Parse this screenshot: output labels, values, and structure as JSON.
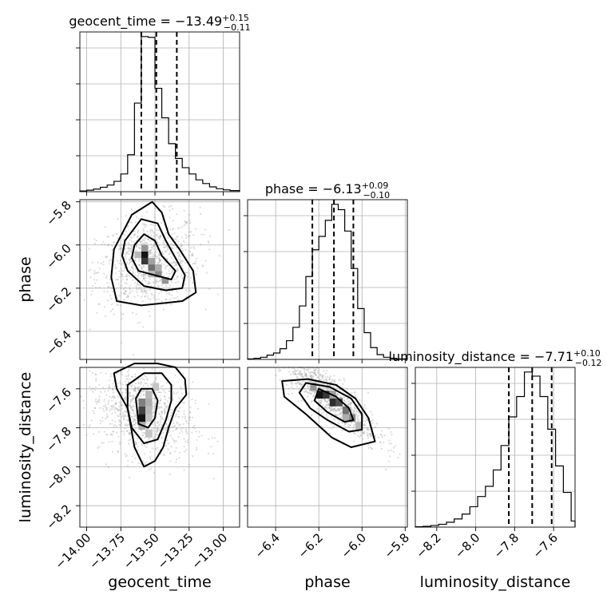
{
  "chart_data": {
    "type": "corner",
    "parameters": [
      "geocent_time",
      "phase",
      "luminosity_distance"
    ],
    "axis_labels": {
      "x": [
        "geocent_time",
        "phase",
        "luminosity_distance"
      ],
      "y": [
        "",
        "phase",
        "luminosity_distance"
      ]
    },
    "ranges": [
      [
        -14.05,
        -12.88
      ],
      [
        -6.53,
        -5.79
      ],
      [
        -8.31,
        -7.49
      ]
    ],
    "ticks": {
      "geocent_time": {
        "values": [
          -14.0,
          -13.75,
          -13.5,
          -13.25,
          -13.0
        ],
        "labels": [
          "−14.00",
          "−13.75",
          "−13.50",
          "−13.25",
          "−13.00"
        ]
      },
      "phase": {
        "values": [
          -6.4,
          -6.2,
          -6.0,
          -5.8
        ],
        "labels": [
          "−6.4",
          "−6.2",
          "−6.0",
          "−5.8"
        ]
      },
      "luminosity_distance": {
        "values": [
          -8.2,
          -8.0,
          -7.8,
          -7.6
        ],
        "labels": [
          "−8.2",
          "−8.0",
          "−7.8",
          "−7.6"
        ]
      }
    },
    "marginals": [
      {
        "parameter": "geocent_time",
        "title_name": "geocent_time",
        "median": "−13.49",
        "plus": "+0.15",
        "minus": "−0.11",
        "quantiles": [
          -13.6,
          -13.49,
          -13.34
        ],
        "bin_edges": [
          -14.05,
          -14.0,
          -13.95,
          -13.9,
          -13.85,
          -13.8,
          -13.75,
          -13.7,
          -13.65,
          -13.6,
          -13.55,
          -13.5,
          -13.45,
          -13.4,
          -13.35,
          -13.3,
          -13.25,
          -13.2,
          -13.15,
          -13.1,
          -13.05,
          -13.0,
          -12.95,
          -12.88
        ],
        "counts": [
          2,
          4,
          7,
          12,
          18,
          28,
          48,
          100,
          240,
          420,
          418,
          280,
          200,
          130,
          90,
          65,
          48,
          32,
          22,
          13,
          8,
          5,
          3
        ]
      },
      {
        "parameter": "phase",
        "title_name": "phase",
        "median": "−6.13",
        "plus": "+0.09",
        "minus": "−0.10",
        "quantiles": [
          -6.23,
          -6.13,
          -6.04
        ],
        "bin_edges": [
          -6.53,
          -6.5,
          -6.47,
          -6.44,
          -6.41,
          -6.38,
          -6.35,
          -6.32,
          -6.29,
          -6.26,
          -6.23,
          -6.2,
          -6.17,
          -6.14,
          -6.11,
          -6.08,
          -6.05,
          -6.02,
          -5.99,
          -5.96,
          -5.93,
          -5.9,
          -5.87,
          -5.84,
          -5.79
        ],
        "counts": [
          1,
          2,
          4,
          8,
          12,
          20,
          35,
          60,
          100,
          155,
          205,
          230,
          260,
          290,
          280,
          240,
          170,
          95,
          50,
          22,
          9,
          4,
          2,
          1
        ]
      },
      {
        "parameter": "luminosity_distance",
        "title_name": "luminosity_distance",
        "median": "−7.71",
        "plus": "+0.10",
        "minus": "−0.12",
        "quantiles": [
          -7.83,
          -7.71,
          -7.61
        ],
        "bin_edges": [
          -8.31,
          -8.27,
          -8.23,
          -8.19,
          -8.15,
          -8.11,
          -8.07,
          -8.03,
          -7.99,
          -7.95,
          -7.91,
          -7.87,
          -7.83,
          -7.79,
          -7.75,
          -7.71,
          -7.67,
          -7.63,
          -7.59,
          -7.55,
          -7.51,
          -7.49
        ],
        "counts": [
          1,
          2,
          4,
          7,
          12,
          20,
          32,
          50,
          75,
          100,
          140,
          200,
          270,
          320,
          380,
          370,
          320,
          240,
          150,
          85,
          15
        ]
      }
    ],
    "joint": [
      {
        "x": "geocent_time",
        "y": "phase",
        "peak": [
          -13.55,
          -6.08
        ],
        "density_cells": [
          {
            "x": -13.575,
            "y": -6.045,
            "d": 1.0
          },
          {
            "x": -13.575,
            "y": -6.075,
            "d": 0.85
          },
          {
            "x": -13.525,
            "y": -6.105,
            "d": 0.6
          },
          {
            "x": -13.475,
            "y": -6.135,
            "d": 0.5
          },
          {
            "x": -13.425,
            "y": -6.165,
            "d": 0.45
          },
          {
            "x": -13.575,
            "y": -6.015,
            "d": 0.45
          },
          {
            "x": -13.525,
            "y": -6.075,
            "d": 0.4
          },
          {
            "x": -13.475,
            "y": -6.105,
            "d": 0.35
          },
          {
            "x": -13.625,
            "y": -6.045,
            "d": 0.3
          },
          {
            "x": -13.525,
            "y": -6.135,
            "d": 0.3
          }
        ],
        "contours": [
          [
            [
              -13.65,
              -6.0
            ],
            [
              -13.58,
              -5.95
            ],
            [
              -13.5,
              -5.98
            ],
            [
              -13.45,
              -6.05
            ],
            [
              -13.35,
              -6.12
            ],
            [
              -13.38,
              -6.16
            ],
            [
              -13.5,
              -6.14
            ],
            [
              -13.62,
              -6.12
            ],
            [
              -13.67,
              -6.06
            ],
            [
              -13.65,
              -6.0
            ]
          ],
          [
            [
              -13.72,
              -5.98
            ],
            [
              -13.6,
              -5.88
            ],
            [
              -13.48,
              -5.9
            ],
            [
              -13.42,
              -5.98
            ],
            [
              -13.35,
              -6.06
            ],
            [
              -13.28,
              -6.14
            ],
            [
              -13.3,
              -6.2
            ],
            [
              -13.42,
              -6.21
            ],
            [
              -13.58,
              -6.19
            ],
            [
              -13.7,
              -6.12
            ],
            [
              -13.74,
              -6.05
            ],
            [
              -13.72,
              -5.98
            ]
          ],
          [
            [
              -13.8,
              -6.02
            ],
            [
              -13.67,
              -5.86
            ],
            [
              -13.52,
              -5.8
            ],
            [
              -13.45,
              -5.85
            ],
            [
              -13.4,
              -5.95
            ],
            [
              -13.32,
              -6.02
            ],
            [
              -13.22,
              -6.12
            ],
            [
              -13.2,
              -6.22
            ],
            [
              -13.3,
              -6.26
            ],
            [
              -13.45,
              -6.27
            ],
            [
              -13.6,
              -6.28
            ],
            [
              -13.78,
              -6.26
            ],
            [
              -13.82,
              -6.15
            ],
            [
              -13.8,
              -6.02
            ]
          ]
        ]
      },
      {
        "x": "geocent_time",
        "y": "luminosity_distance",
        "peak": [
          -13.6,
          -7.72
        ],
        "density_cells": [
          {
            "x": -13.595,
            "y": -7.75,
            "d": 1.0
          },
          {
            "x": -13.595,
            "y": -7.71,
            "d": 0.8
          },
          {
            "x": -13.595,
            "y": -7.67,
            "d": 0.55
          },
          {
            "x": -13.545,
            "y": -7.67,
            "d": 0.35
          },
          {
            "x": -13.545,
            "y": -7.63,
            "d": 0.3
          },
          {
            "x": -13.495,
            "y": -7.59,
            "d": 0.25
          },
          {
            "x": -13.545,
            "y": -7.71,
            "d": 0.3
          },
          {
            "x": -13.545,
            "y": -7.75,
            "d": 0.25
          },
          {
            "x": -13.595,
            "y": -7.79,
            "d": 0.35
          },
          {
            "x": -13.545,
            "y": -7.83,
            "d": 0.25
          }
        ],
        "contours": [
          [
            [
              -13.64,
              -7.65
            ],
            [
              -13.6,
              -7.6
            ],
            [
              -13.52,
              -7.6
            ],
            [
              -13.48,
              -7.66
            ],
            [
              -13.5,
              -7.75
            ],
            [
              -13.55,
              -7.8
            ],
            [
              -13.62,
              -7.78
            ],
            [
              -13.64,
              -7.65
            ]
          ],
          [
            [
              -13.7,
              -7.58
            ],
            [
              -13.58,
              -7.52
            ],
            [
              -13.45,
              -7.52
            ],
            [
              -13.38,
              -7.58
            ],
            [
              -13.38,
              -7.66
            ],
            [
              -13.42,
              -7.76
            ],
            [
              -13.48,
              -7.86
            ],
            [
              -13.58,
              -7.88
            ],
            [
              -13.67,
              -7.8
            ],
            [
              -13.7,
              -7.7
            ],
            [
              -13.7,
              -7.58
            ]
          ],
          [
            [
              -13.8,
              -7.52
            ],
            [
              -13.65,
              -7.47
            ],
            [
              -13.48,
              -7.47
            ],
            [
              -13.35,
              -7.49
            ],
            [
              -13.28,
              -7.55
            ],
            [
              -13.27,
              -7.63
            ],
            [
              -13.35,
              -7.7
            ],
            [
              -13.4,
              -7.8
            ],
            [
              -13.44,
              -7.9
            ],
            [
              -13.5,
              -7.97
            ],
            [
              -13.58,
              -8.0
            ],
            [
              -13.65,
              -7.9
            ],
            [
              -13.7,
              -7.7
            ],
            [
              -13.78,
              -7.6
            ],
            [
              -13.8,
              -7.52
            ]
          ]
        ]
      },
      {
        "x": "phase",
        "y": "luminosity_distance",
        "peak": [
          -6.16,
          -7.63
        ],
        "density_cells": [
          {
            "x": -6.195,
            "y": -7.63,
            "d": 1.0
          },
          {
            "x": -6.165,
            "y": -7.63,
            "d": 0.85
          },
          {
            "x": -6.135,
            "y": -7.67,
            "d": 0.9
          },
          {
            "x": -6.105,
            "y": -7.67,
            "d": 0.75
          },
          {
            "x": -6.075,
            "y": -7.71,
            "d": 0.6
          },
          {
            "x": -6.045,
            "y": -7.75,
            "d": 0.5
          },
          {
            "x": -6.225,
            "y": -7.59,
            "d": 0.45
          },
          {
            "x": -6.135,
            "y": -7.63,
            "d": 0.4
          },
          {
            "x": -6.075,
            "y": -7.75,
            "d": 0.35
          },
          {
            "x": -6.015,
            "y": -7.79,
            "d": 0.3
          }
        ],
        "contours": [
          [
            [
              -6.2,
              -7.6
            ],
            [
              -6.12,
              -7.64
            ],
            [
              -6.06,
              -7.7
            ],
            [
              -6.04,
              -7.76
            ],
            [
              -6.08,
              -7.77
            ],
            [
              -6.16,
              -7.72
            ],
            [
              -6.22,
              -7.66
            ],
            [
              -6.2,
              -7.6
            ]
          ],
          [
            [
              -6.26,
              -7.57
            ],
            [
              -6.15,
              -7.59
            ],
            [
              -6.05,
              -7.65
            ],
            [
              -6.0,
              -7.73
            ],
            [
              -6.0,
              -7.81
            ],
            [
              -6.06,
              -7.82
            ],
            [
              -6.16,
              -7.76
            ],
            [
              -6.24,
              -7.7
            ],
            [
              -6.29,
              -7.62
            ],
            [
              -6.26,
              -7.57
            ]
          ],
          [
            [
              -6.37,
              -7.56
            ],
            [
              -6.25,
              -7.55
            ],
            [
              -6.12,
              -7.58
            ],
            [
              -6.03,
              -7.65
            ],
            [
              -5.97,
              -7.75
            ],
            [
              -5.94,
              -7.87
            ],
            [
              -6.05,
              -7.9
            ],
            [
              -6.14,
              -7.85
            ],
            [
              -6.26,
              -7.73
            ],
            [
              -6.36,
              -7.64
            ],
            [
              -6.37,
              -7.56
            ]
          ]
        ]
      }
    ],
    "scatter_color": "#9a9a9a",
    "line_color": "#000000",
    "grid": true
  }
}
